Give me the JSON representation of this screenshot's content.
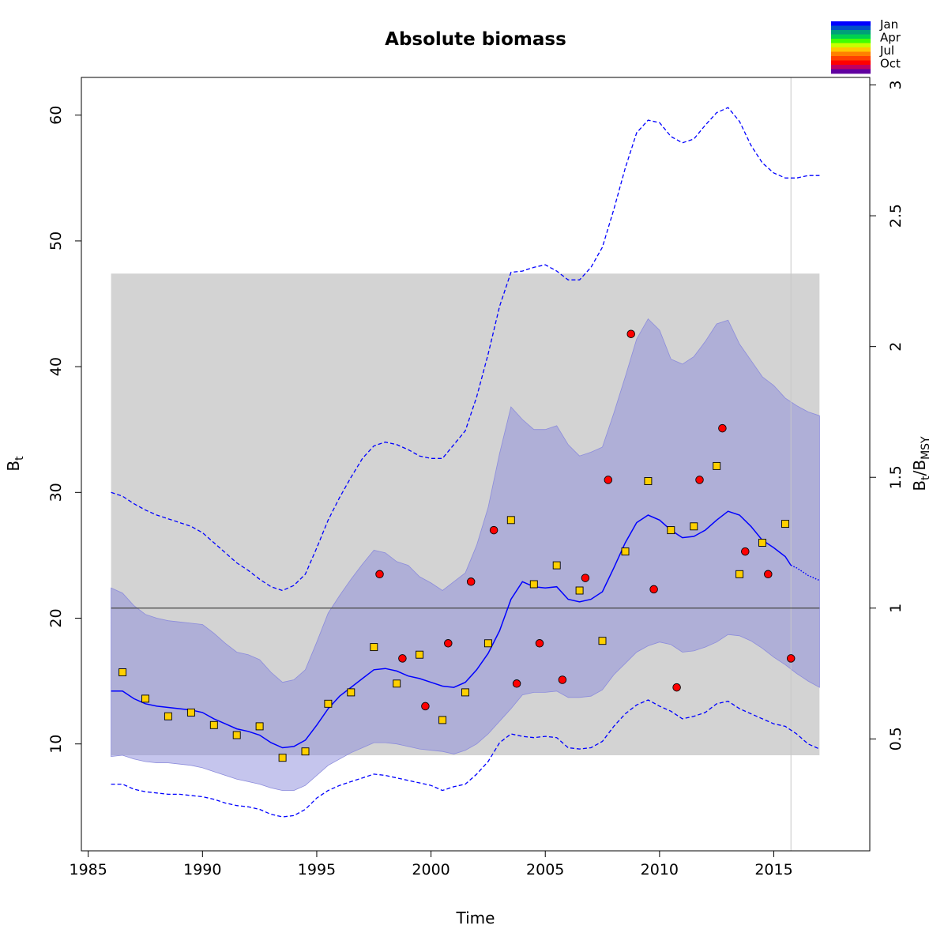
{
  "chart_data": {
    "type": "line",
    "title": "Absolute biomass",
    "xlabel": "Time",
    "ylabel": {
      "main": "B",
      "sub": "t"
    },
    "y2label": {
      "main": "B",
      "sub": "t",
      "slash": "/B",
      "sub2": "MSY"
    },
    "xlim": [
      1984.7,
      2019.2
    ],
    "ylim": [
      1.5,
      63.0
    ],
    "x_ticks": [
      "1985",
      "1990",
      "1995",
      "2000",
      "2005",
      "2010",
      "2015"
    ],
    "y_ticks": [
      "10",
      "20",
      "30",
      "40",
      "50",
      "60"
    ],
    "y2_ticks": [
      {
        "label": "0.5",
        "ratio": 0.5
      },
      {
        "label": "1",
        "ratio": 1
      },
      {
        "label": "1.5",
        "ratio": 1.5
      },
      {
        "label": "2",
        "ratio": 2
      },
      {
        "label": "2.5",
        "ratio": 2.5
      },
      {
        "label": "3",
        "ratio": 3
      }
    ],
    "bmsy": 20.8,
    "bmsy_ci_band": {
      "x": [
        1986.0,
        2017.0
      ],
      "y": [
        9.1,
        47.4
      ]
    },
    "last_obs_time": 2015.75,
    "legend": {
      "labels": [
        "Jan",
        "Apr",
        "Jul",
        "Oct"
      ],
      "colors": [
        "#0000ff",
        "#0050c8",
        "#00a078",
        "#00d050",
        "#40ff00",
        "#c8ff00",
        "#ffc800",
        "#ff8000",
        "#ff4000",
        "#ff0000",
        "#c00060",
        "#6000a0"
      ]
    },
    "colors": {
      "estimate": "#0000ff",
      "band": "#8c8cdc",
      "band_alpha": 0.5,
      "bmsy_band": "#d3d3d3",
      "index1": "#ff0000",
      "index2": "#ffd000"
    },
    "series": [
      {
        "role": "estimate",
        "x": [
          1986.0,
          1986.5,
          1987.0,
          1987.5,
          1988.0,
          1988.5,
          1989.0,
          1989.5,
          1990.0,
          1990.5,
          1991.0,
          1991.5,
          1992.0,
          1992.5,
          1993.0,
          1993.5,
          1994.0,
          1994.5,
          1995.0,
          1995.5,
          1996.0,
          1996.5,
          1997.0,
          1997.5,
          1998.0,
          1998.5,
          1999.0,
          1999.5,
          2000.0,
          2000.5,
          2001.0,
          2001.5,
          2002.0,
          2002.5,
          2003.0,
          2003.5,
          2004.0,
          2004.5,
          2005.0,
          2005.5,
          2006.0,
          2006.5,
          2007.0,
          2007.5,
          2008.0,
          2008.5,
          2009.0,
          2009.5,
          2010.0,
          2010.5,
          2011.0,
          2011.5,
          2012.0,
          2012.5,
          2013.0,
          2013.5,
          2014.0,
          2014.5,
          2015.0,
          2015.5,
          2015.75
        ],
        "y": [
          14.2,
          14.2,
          13.6,
          13.2,
          13.0,
          12.9,
          12.8,
          12.7,
          12.5,
          12.0,
          11.6,
          11.2,
          11.0,
          10.7,
          10.1,
          9.7,
          9.8,
          10.3,
          11.5,
          12.8,
          13.8,
          14.5,
          15.2,
          15.9,
          16.0,
          15.8,
          15.4,
          15.2,
          14.9,
          14.6,
          14.5,
          14.9,
          15.9,
          17.2,
          19.0,
          21.5,
          22.9,
          22.5,
          22.4,
          22.5,
          21.5,
          21.3,
          21.5,
          22.1,
          24.0,
          26.0,
          27.6,
          28.2,
          27.8,
          27.0,
          26.4,
          26.5,
          27.0,
          27.8,
          28.5,
          28.2,
          27.3,
          26.2,
          25.6,
          24.9,
          24.2
        ]
      },
      {
        "role": "forecast",
        "x": [
          2015.75,
          2016.0,
          2016.5,
          2017.0
        ],
        "y": [
          24.2,
          24.0,
          23.4,
          23.0
        ]
      },
      {
        "role": "ci_lower",
        "x": [
          1986.0,
          1986.5,
          1987.0,
          1987.5,
          1988.0,
          1988.5,
          1989.0,
          1989.5,
          1990.0,
          1990.5,
          1991.0,
          1991.5,
          1992.0,
          1992.5,
          1993.0,
          1993.5,
          1994.0,
          1994.5,
          1995.0,
          1995.5,
          1996.0,
          1996.5,
          1997.0,
          1997.5,
          1998.0,
          1998.5,
          1999.0,
          1999.5,
          2000.0,
          2000.5,
          2001.0,
          2001.5,
          2002.0,
          2002.5,
          2003.0,
          2003.5,
          2004.0,
          2004.5,
          2005.0,
          2005.5,
          2006.0,
          2006.5,
          2007.0,
          2007.5,
          2008.0,
          2008.5,
          2009.0,
          2009.5,
          2010.0,
          2010.5,
          2011.0,
          2011.5,
          2012.0,
          2012.5,
          2013.0,
          2013.5,
          2014.0,
          2014.5,
          2015.0,
          2015.5,
          2016.0,
          2016.5,
          2017.0
        ],
        "y": [
          9.0,
          9.1,
          8.8,
          8.6,
          8.5,
          8.5,
          8.4,
          8.3,
          8.1,
          7.8,
          7.5,
          7.2,
          7.0,
          6.8,
          6.5,
          6.3,
          6.3,
          6.7,
          7.5,
          8.3,
          8.8,
          9.3,
          9.7,
          10.1,
          10.1,
          10.0,
          9.8,
          9.6,
          9.5,
          9.4,
          9.2,
          9.5,
          10.0,
          10.8,
          11.8,
          12.8,
          13.9,
          14.1,
          14.1,
          14.2,
          13.7,
          13.7,
          13.8,
          14.3,
          15.5,
          16.4,
          17.3,
          17.8,
          18.1,
          17.9,
          17.3,
          17.4,
          17.7,
          18.1,
          18.7,
          18.6,
          18.2,
          17.6,
          16.9,
          16.3,
          15.6,
          15.0,
          14.5
        ]
      },
      {
        "role": "ci_upper",
        "x": [
          1986.0,
          1986.5,
          1987.0,
          1987.5,
          1988.0,
          1988.5,
          1989.0,
          1989.5,
          1990.0,
          1990.5,
          1991.0,
          1991.5,
          1992.0,
          1992.5,
          1993.0,
          1993.5,
          1994.0,
          1994.5,
          1995.0,
          1995.5,
          1996.0,
          1996.5,
          1997.0,
          1997.5,
          1998.0,
          1998.5,
          1999.0,
          1999.5,
          2000.0,
          2000.5,
          2001.0,
          2001.5,
          2002.0,
          2002.5,
          2003.0,
          2003.5,
          2004.0,
          2004.5,
          2005.0,
          2005.5,
          2006.0,
          2006.5,
          2007.0,
          2007.5,
          2008.0,
          2008.5,
          2009.0,
          2009.5,
          2010.0,
          2010.5,
          2011.0,
          2011.5,
          2012.0,
          2012.5,
          2013.0,
          2013.5,
          2014.0,
          2014.5,
          2015.0,
          2015.5,
          2016.0,
          2016.5,
          2017.0
        ],
        "y": [
          22.4,
          22.0,
          21.0,
          20.3,
          20.0,
          19.8,
          19.7,
          19.6,
          19.5,
          18.8,
          18.0,
          17.3,
          17.1,
          16.7,
          15.7,
          14.9,
          15.1,
          15.9,
          18.1,
          20.4,
          21.8,
          23.1,
          24.3,
          25.4,
          25.2,
          24.5,
          24.2,
          23.3,
          22.8,
          22.2,
          22.9,
          23.6,
          25.8,
          28.8,
          33.1,
          36.8,
          35.8,
          35.0,
          35.0,
          35.3,
          33.8,
          32.9,
          33.2,
          33.6,
          36.3,
          39.2,
          42.2,
          43.8,
          42.9,
          40.6,
          40.2,
          40.8,
          42.0,
          43.4,
          43.7,
          41.8,
          40.5,
          39.2,
          38.5,
          37.5,
          36.9,
          36.4,
          36.1
        ]
      },
      {
        "role": "pred_upper",
        "x": [
          1986.0,
          1986.5,
          1987.0,
          1987.5,
          1988.0,
          1988.5,
          1989.0,
          1989.5,
          1990.0,
          1990.5,
          1991.0,
          1991.5,
          1992.0,
          1992.5,
          1993.0,
          1993.5,
          1994.0,
          1994.5,
          1995.0,
          1995.5,
          1996.0,
          1996.5,
          1997.0,
          1997.5,
          1998.0,
          1998.5,
          1999.0,
          1999.5,
          2000.0,
          2000.5,
          2001.0,
          2001.5,
          2002.0,
          2002.5,
          2003.0,
          2003.5,
          2004.0,
          2004.5,
          2005.0,
          2005.5,
          2006.0,
          2006.5,
          2007.0,
          2007.5,
          2008.0,
          2008.5,
          2009.0,
          2009.5,
          2010.0,
          2010.5,
          2011.0,
          2011.5,
          2012.0,
          2012.5,
          2013.0,
          2013.5,
          2014.0,
          2014.5,
          2015.0,
          2015.5,
          2016.0,
          2016.5,
          2017.0
        ],
        "y": [
          30.0,
          29.7,
          29.1,
          28.6,
          28.2,
          27.9,
          27.6,
          27.3,
          26.8,
          26.0,
          25.2,
          24.4,
          23.8,
          23.1,
          22.5,
          22.2,
          22.6,
          23.5,
          25.6,
          27.8,
          29.6,
          31.2,
          32.7,
          33.7,
          34.0,
          33.8,
          33.4,
          32.9,
          32.7,
          32.7,
          33.8,
          34.9,
          37.6,
          41.0,
          44.8,
          47.5,
          47.6,
          47.9,
          48.1,
          47.6,
          46.9,
          46.9,
          47.9,
          49.5,
          52.5,
          55.8,
          58.6,
          59.6,
          59.4,
          58.3,
          57.8,
          58.1,
          59.2,
          60.2,
          60.6,
          59.5,
          57.6,
          56.2,
          55.4,
          55.0,
          55.0,
          55.2,
          55.2
        ]
      },
      {
        "role": "pred_lower",
        "x": [
          1986.0,
          1986.5,
          1987.0,
          1987.5,
          1988.0,
          1988.5,
          1989.0,
          1989.5,
          1990.0,
          1990.5,
          1991.0,
          1991.5,
          1992.0,
          1992.5,
          1993.0,
          1993.5,
          1994.0,
          1994.5,
          1995.0,
          1995.5,
          1996.0,
          1996.5,
          1997.0,
          1997.5,
          1998.0,
          1998.5,
          1999.0,
          1999.5,
          2000.0,
          2000.5,
          2001.0,
          2001.5,
          2002.0,
          2002.5,
          2003.0,
          2003.5,
          2004.0,
          2004.5,
          2005.0,
          2005.5,
          2006.0,
          2006.5,
          2007.0,
          2007.5,
          2008.0,
          2008.5,
          2009.0,
          2009.5,
          2010.0,
          2010.5,
          2011.0,
          2011.5,
          2012.0,
          2012.5,
          2013.0,
          2013.5,
          2014.0,
          2014.5,
          2015.0,
          2015.5,
          2016.0,
          2016.5,
          2017.0
        ],
        "y": [
          6.8,
          6.8,
          6.4,
          6.2,
          6.1,
          6.0,
          6.0,
          5.9,
          5.8,
          5.6,
          5.3,
          5.1,
          5.0,
          4.8,
          4.4,
          4.2,
          4.3,
          4.8,
          5.7,
          6.3,
          6.7,
          7.0,
          7.3,
          7.6,
          7.5,
          7.3,
          7.1,
          6.9,
          6.7,
          6.3,
          6.6,
          6.8,
          7.6,
          8.6,
          10.1,
          10.8,
          10.6,
          10.5,
          10.6,
          10.5,
          9.7,
          9.6,
          9.7,
          10.2,
          11.4,
          12.4,
          13.1,
          13.5,
          13.0,
          12.6,
          12.0,
          12.2,
          12.5,
          13.2,
          13.4,
          12.8,
          12.4,
          12.0,
          11.6,
          11.4,
          10.8,
          10.0,
          9.6
        ]
      }
    ],
    "index1": {
      "x": [
        1997.75,
        1998.75,
        1999.75,
        2000.75,
        2001.75,
        2002.75,
        2003.75,
        2004.75,
        2005.75,
        2006.75,
        2007.75,
        2008.75,
        2009.75,
        2010.75,
        2011.75,
        2012.75,
        2013.75,
        2014.75,
        2015.75
      ],
      "y": [
        23.5,
        16.8,
        13.0,
        18.0,
        22.9,
        27.0,
        14.8,
        18.0,
        15.1,
        23.2,
        31.0,
        42.6,
        22.3,
        14.5,
        31.0,
        35.1,
        25.3,
        23.5,
        16.8
      ]
    },
    "index2": {
      "x": [
        1986.5,
        1987.5,
        1988.5,
        1989.5,
        1990.5,
        1991.5,
        1992.5,
        1993.5,
        1994.5,
        1995.5,
        1996.5,
        1997.5,
        1998.5,
        1999.5,
        2000.5,
        2001.5,
        2002.5,
        2003.5,
        2004.5,
        2005.5,
        2006.5,
        2007.5,
        2008.5,
        2009.5,
        2010.5,
        2011.5,
        2012.5,
        2013.5,
        2014.5,
        2015.5
      ],
      "y": [
        15.7,
        13.6,
        12.2,
        12.5,
        11.5,
        10.7,
        11.4,
        8.9,
        9.4,
        13.2,
        14.1,
        17.7,
        14.8,
        17.1,
        11.9,
        14.1,
        18.0,
        27.8,
        22.7,
        24.2,
        22.2,
        18.2,
        25.3,
        30.9,
        27.0,
        27.3,
        32.1,
        23.5,
        26.0,
        27.5
      ]
    }
  }
}
